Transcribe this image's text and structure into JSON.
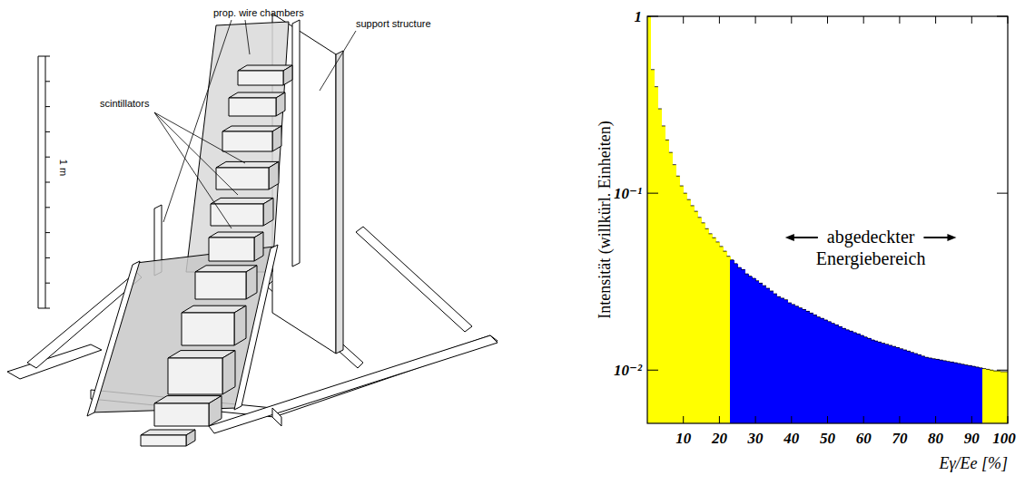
{
  "diagram": {
    "labels": {
      "scale": "1 m",
      "chambers": "prop. wire chambers",
      "support": "support structure",
      "scintillators": "scintillators"
    }
  },
  "chart_data": {
    "type": "histogram",
    "x_label": "Eγ/Ee [%]",
    "y_label": "Intensität (willkürl. Einheiten)",
    "annotations": [
      {
        "text": "abgedeckter Energiebereich"
      }
    ],
    "bins": [
      0,
      1,
      2,
      3,
      4,
      5,
      6,
      7,
      8,
      9,
      10,
      11,
      12,
      13,
      14,
      15,
      16,
      17,
      18,
      19,
      20,
      21,
      22,
      23,
      24,
      25,
      26,
      27,
      28,
      29,
      30,
      31,
      32,
      33,
      34,
      35,
      36,
      37,
      38,
      39,
      40,
      41,
      42,
      43,
      44,
      45,
      46,
      47,
      48,
      49,
      50,
      51,
      52,
      53,
      54,
      55,
      56,
      57,
      58,
      59,
      60,
      61,
      62,
      63,
      64,
      65,
      66,
      67,
      68,
      69,
      70,
      71,
      72,
      73,
      74,
      75,
      76,
      77,
      78,
      79,
      80,
      81,
      82,
      83,
      84,
      85,
      86,
      87,
      88,
      89,
      90,
      91,
      92,
      93,
      94,
      95,
      96,
      97,
      98,
      99,
      100
    ],
    "values": [
      1.0,
      0.5,
      0.4,
      0.3,
      0.24,
      0.2,
      0.17,
      0.145,
      0.125,
      0.11,
      0.1,
      0.092,
      0.085,
      0.079,
      0.073,
      0.068,
      0.063,
      0.059,
      0.056,
      0.053,
      0.05,
      0.047,
      0.044,
      0.042,
      0.04,
      0.038,
      0.037,
      0.035,
      0.034,
      0.033,
      0.032,
      0.031,
      0.03,
      0.029,
      0.028,
      0.027,
      0.026,
      0.0255,
      0.025,
      0.024,
      0.0235,
      0.023,
      0.0225,
      0.022,
      0.0215,
      0.021,
      0.0205,
      0.02,
      0.0196,
      0.0192,
      0.0188,
      0.0184,
      0.018,
      0.0176,
      0.0172,
      0.0169,
      0.0166,
      0.0163,
      0.016,
      0.0157,
      0.0154,
      0.0151,
      0.0148,
      0.0146,
      0.0144,
      0.0142,
      0.014,
      0.0138,
      0.0136,
      0.0134,
      0.0132,
      0.013,
      0.0128,
      0.0126,
      0.0124,
      0.0122,
      0.012,
      0.0118,
      0.0117,
      0.0116,
      0.0115,
      0.0114,
      0.0113,
      0.0112,
      0.0111,
      0.011,
      0.0109,
      0.0108,
      0.0107,
      0.0106,
      0.0105,
      0.0104,
      0.0103,
      0.0102,
      0.0101,
      0.01,
      0.0099,
      0.0099,
      0.0098,
      0.0098
    ],
    "colors": [
      "#ffff00",
      "#ffff00",
      "#ffff00",
      "#ffff00",
      "#ffff00",
      "#ffff00",
      "#ffff00",
      "#ffff00",
      "#ffff00",
      "#ffff00",
      "#ffff00",
      "#ffff00",
      "#ffff00",
      "#ffff00",
      "#ffff00",
      "#ffff00",
      "#ffff00",
      "#ffff00",
      "#ffff00",
      "#ffff00",
      "#ffff00",
      "#ffff00",
      "#ffff00",
      "#0000ff",
      "#0000ff",
      "#0000ff",
      "#0000ff",
      "#0000ff",
      "#0000ff",
      "#0000ff",
      "#0000ff",
      "#0000ff",
      "#0000ff",
      "#0000ff",
      "#0000ff",
      "#0000ff",
      "#0000ff",
      "#0000ff",
      "#0000ff",
      "#0000ff",
      "#0000ff",
      "#0000ff",
      "#0000ff",
      "#0000ff",
      "#0000ff",
      "#0000ff",
      "#0000ff",
      "#0000ff",
      "#0000ff",
      "#0000ff",
      "#0000ff",
      "#0000ff",
      "#0000ff",
      "#0000ff",
      "#0000ff",
      "#0000ff",
      "#0000ff",
      "#0000ff",
      "#0000ff",
      "#0000ff",
      "#0000ff",
      "#0000ff",
      "#0000ff",
      "#0000ff",
      "#0000ff",
      "#0000ff",
      "#0000ff",
      "#0000ff",
      "#0000ff",
      "#0000ff",
      "#0000ff",
      "#0000ff",
      "#0000ff",
      "#0000ff",
      "#0000ff",
      "#0000ff",
      "#0000ff",
      "#0000ff",
      "#0000ff",
      "#0000ff",
      "#0000ff",
      "#0000ff",
      "#0000ff",
      "#0000ff",
      "#0000ff",
      "#0000ff",
      "#0000ff",
      "#0000ff",
      "#0000ff",
      "#0000ff",
      "#0000ff",
      "#0000ff",
      "#0000ff",
      "#ffff00",
      "#ffff00",
      "#ffff00",
      "#ffff00",
      "#ffff00",
      "#ffff00",
      "#ffff00"
    ],
    "xlim": [
      0,
      100
    ],
    "xticks": [
      10,
      20,
      30,
      40,
      50,
      60,
      70,
      80,
      90,
      100
    ],
    "ylim": [
      0.005,
      1
    ],
    "yticks": [
      1,
      {
        "value": 0.1,
        "label": "10⁻¹"
      },
      {
        "value": 0.01,
        "label": "10⁻²"
      }
    ],
    "log": "y",
    "grid": false
  }
}
